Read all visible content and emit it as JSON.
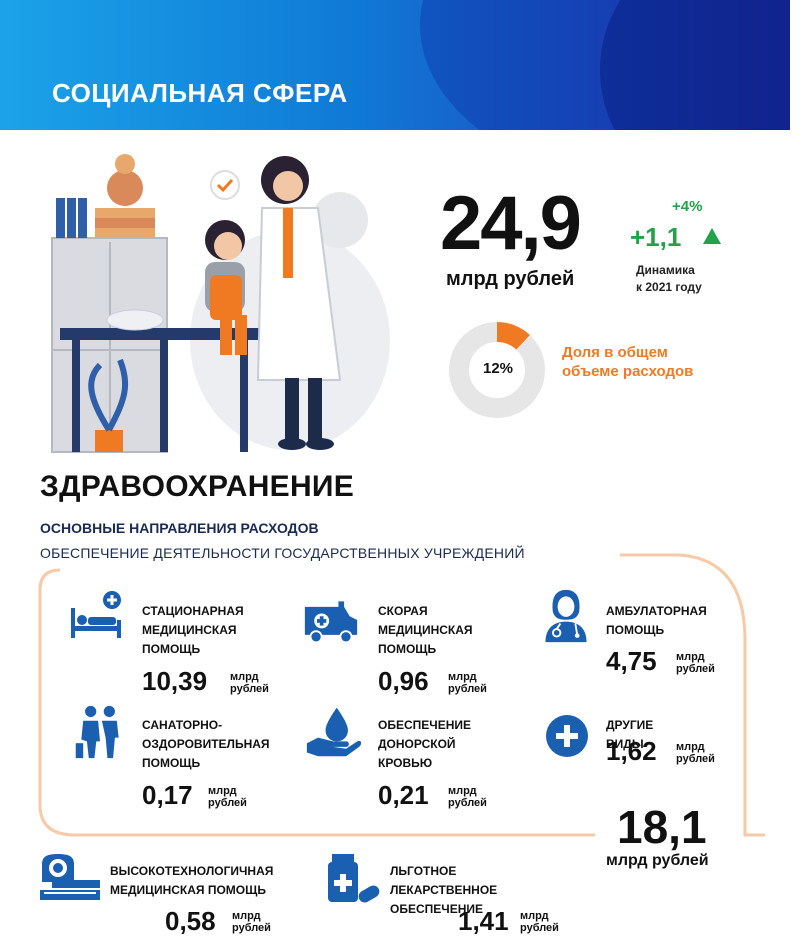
{
  "banner": {
    "title": "СОЦИАЛЬНАЯ СФЕРА"
  },
  "summary": {
    "amount": "24,9",
    "unit": "млрд рублей",
    "pct_change": "+4%",
    "delta": "+1,1",
    "dynamics_line1": "Динамика",
    "dynamics_line2": "к 2021 году",
    "share_value": "12%",
    "share_fraction": 0.12,
    "share_caption_line1": "Доля в общем",
    "share_caption_line2": "объеме расходов"
  },
  "section": {
    "title": "ЗДРАВООХРАНЕНИЕ",
    "subtitle1": "ОСНОВНЫЕ НАПРАВЛЕНИЯ РАСХОДОВ",
    "subtitle2": "ОБЕСПЕЧЕНИЕ ДЕЯТЕЛЬНОСТИ ГОСУДАРСТВЕННЫХ УЧРЕЖДЕНИЙ"
  },
  "unit_small": {
    "line1": "млрд",
    "line2": "рублей"
  },
  "items": [
    {
      "l1": "СТАЦИОНАРНАЯ",
      "l2": "МЕДИЦИНСКАЯ",
      "l3": "ПОМОЩЬ",
      "value": "10,39",
      "icon": "hospital-bed-icon"
    },
    {
      "l1": "СКОРАЯ",
      "l2": "МЕДИЦИНСКАЯ",
      "l3": "ПОМОЩЬ",
      "value": "0,96",
      "icon": "ambulance-icon"
    },
    {
      "l1": "АМБУЛАТОРНАЯ",
      "l2": "ПОМОЩЬ",
      "l3": "",
      "value": "4,75",
      "icon": "doctor-icon"
    },
    {
      "l1": "САНАТОРНО-",
      "l2": "ОЗДОРОВИТЕЛЬНАЯ",
      "l3": "ПОМОЩЬ",
      "value": "0,17",
      "icon": "patient-care-icon"
    },
    {
      "l1": "ОБЕСПЕЧЕНИЕ",
      "l2": "ДОНОРСКОЙ",
      "l3": "КРОВЬЮ",
      "value": "0,21",
      "icon": "blood-drop-hand-icon"
    },
    {
      "l1": "ДРУГИЕ ВИДЫ",
      "l2": "",
      "l3": "",
      "value": "1,62",
      "icon": "plus-circle-icon"
    },
    {
      "l1": "ВЫСОКОТЕХНОЛОГИЧНАЯ",
      "l2": "МЕДИЦИНСКАЯ ПОМОЩЬ",
      "l3": "",
      "value": "0,58",
      "icon": "mri-scanner-icon"
    },
    {
      "l1": "ЛЬГОТНОЕ ЛЕКАРСТВЕННОЕ",
      "l2": "ОБЕСПЕЧЕНИЕ",
      "l3": "",
      "value": "1,41",
      "icon": "medicine-icon"
    }
  ],
  "total": {
    "value": "18,1",
    "unit": "млрд рублей"
  },
  "colors": {
    "accent_orange": "#f07a22",
    "icon_blue": "#1b5fb0",
    "green": "#22a34a",
    "banner_blue": "#1079d6"
  }
}
